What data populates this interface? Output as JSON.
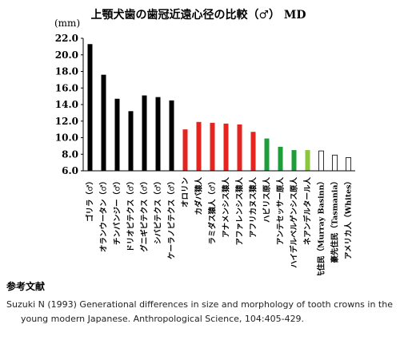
{
  "chart_data": {
    "type": "bar",
    "title": "上顎犬歯の歯冠近遠心径の比較（♂） MD",
    "ylabel": "(mm)",
    "ylim": [
      6.0,
      22.0
    ],
    "yticks": [
      "22.0",
      "20.0",
      "18.0",
      "16.0",
      "14.0",
      "12.0",
      "10.0",
      "8.0",
      "6.0"
    ],
    "grid": false,
    "categories": [
      "ゴリラ（♂）",
      "オランウータン（♂）",
      "チンパンジー（♂）",
      "ドリオピテクス（♂）",
      "グニギピテクス（♂）",
      "シバピテクス（♂）",
      "ケーラノピテクス（♂）",
      "オロリン",
      "カダバ猿人",
      "ラミダス猿人（♂）",
      "アナメンシス猿人",
      "アファレンシス猿人",
      "アフリカヌス猿人",
      "ハビリス原人",
      "アンテセッサー原人",
      "ハイデルベルゲンシス原人",
      "ネアンデルタール人",
      "豪先住民（Murray Basinn）",
      "豪先住民（Tasmania）",
      "アメリカ人（Whites）"
    ],
    "values": [
      21.3,
      17.6,
      14.7,
      13.2,
      15.1,
      14.9,
      14.5,
      11.0,
      11.9,
      11.8,
      11.7,
      11.6,
      10.7,
      9.9,
      8.9,
      8.5,
      8.5,
      8.4,
      7.9,
      7.6
    ],
    "colors": [
      "#000000",
      "#000000",
      "#000000",
      "#000000",
      "#000000",
      "#000000",
      "#000000",
      "#e52420",
      "#e52420",
      "#e52420",
      "#e52420",
      "#e52420",
      "#e52420",
      "#1e9e3a",
      "#1e9e3a",
      "#1e9e3a",
      "#8cc63f",
      "#ffffff",
      "#ffffff",
      "#ffffff"
    ]
  },
  "references": {
    "heading": "参考文献",
    "line1": "Suzuki N (1993) Generational differences in size and morphology of tooth crowns in the",
    "line2": "young modern Japanese. Anthropological Science, 104:405-429."
  }
}
